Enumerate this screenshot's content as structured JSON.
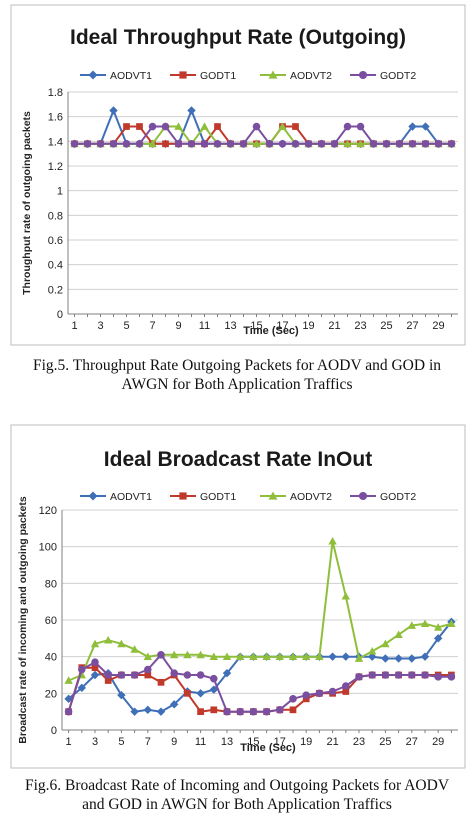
{
  "colors": {
    "AODVT1": "#3f6fb7",
    "GODT1": "#c0392b",
    "AODVT2": "#8fbf3a",
    "GODT2": "#7b4fa0",
    "grid": "#d0d0d0",
    "axis": "#808080"
  },
  "chart_data": [
    {
      "type": "line",
      "title": "Ideal Throughput Rate (Outgoing)",
      "xlabel": "Time (Sec)",
      "ylabel": "Throughput rate of outgoing packets",
      "x": [
        1,
        2,
        3,
        4,
        5,
        6,
        7,
        8,
        9,
        10,
        11,
        12,
        13,
        14,
        15,
        16,
        17,
        18,
        19,
        20,
        21,
        22,
        23,
        24,
        25,
        26,
        27,
        28,
        29,
        30
      ],
      "x_ticks": [
        1,
        3,
        5,
        7,
        9,
        11,
        13,
        15,
        17,
        19,
        21,
        23,
        25,
        27,
        29
      ],
      "y_ticks": [
        "0",
        "0.2",
        "0.4",
        "0.6",
        "0.8",
        "1",
        "1.2",
        "1.4",
        "1.6",
        "1.8"
      ],
      "ylim": [
        0,
        1.8
      ],
      "grid": true,
      "legend": "top",
      "series": [
        {
          "name": "AODVT1",
          "marker": "diamond",
          "values": [
            1.38,
            1.38,
            1.38,
            1.65,
            1.38,
            1.38,
            1.38,
            1.38,
            1.38,
            1.65,
            1.38,
            1.38,
            1.38,
            1.38,
            1.38,
            1.38,
            1.38,
            1.38,
            1.38,
            1.38,
            1.38,
            1.38,
            1.38,
            1.38,
            1.38,
            1.38,
            1.52,
            1.52,
            1.38,
            1.38
          ]
        },
        {
          "name": "GODT1",
          "marker": "square",
          "values": [
            1.38,
            1.38,
            1.38,
            1.38,
            1.52,
            1.52,
            1.38,
            1.38,
            1.38,
            1.38,
            1.38,
            1.52,
            1.38,
            1.38,
            1.38,
            1.38,
            1.52,
            1.52,
            1.38,
            1.38,
            1.38,
            1.38,
            1.38,
            1.38,
            1.38,
            1.38,
            1.38,
            1.38,
            1.38,
            1.38
          ]
        },
        {
          "name": "AODVT2",
          "marker": "triangle",
          "values": [
            1.38,
            1.38,
            1.38,
            1.38,
            1.38,
            1.38,
            1.38,
            1.52,
            1.52,
            1.38,
            1.52,
            1.38,
            1.38,
            1.38,
            1.38,
            1.38,
            1.52,
            1.38,
            1.38,
            1.38,
            1.38,
            1.38,
            1.38,
            1.38,
            1.38,
            1.38,
            1.38,
            1.38,
            1.38,
            1.38
          ]
        },
        {
          "name": "GODT2",
          "marker": "circle",
          "values": [
            1.38,
            1.38,
            1.38,
            1.38,
            1.38,
            1.38,
            1.52,
            1.52,
            1.38,
            1.38,
            1.38,
            1.38,
            1.38,
            1.38,
            1.52,
            1.38,
            1.38,
            1.38,
            1.38,
            1.38,
            1.38,
            1.52,
            1.52,
            1.38,
            1.38,
            1.38,
            1.38,
            1.38,
            1.38,
            1.38
          ]
        }
      ]
    },
    {
      "type": "line",
      "title": "Ideal Broadcast Rate InOut",
      "xlabel": "Time (Sec)",
      "ylabel": "Broadcast rate of incoming and outgoing packets",
      "x": [
        1,
        2,
        3,
        4,
        5,
        6,
        7,
        8,
        9,
        10,
        11,
        12,
        13,
        14,
        15,
        16,
        17,
        18,
        19,
        20,
        21,
        22,
        23,
        24,
        25,
        26,
        27,
        28,
        29,
        30
      ],
      "x_ticks": [
        1,
        3,
        5,
        7,
        9,
        11,
        13,
        15,
        17,
        19,
        21,
        23,
        25,
        27,
        29
      ],
      "y_ticks": [
        "0",
        "20",
        "40",
        "60",
        "80",
        "100",
        "120"
      ],
      "ylim": [
        0,
        120
      ],
      "grid": true,
      "legend": "top",
      "series": [
        {
          "name": "AODVT1",
          "marker": "diamond",
          "values": [
            17,
            23,
            30,
            31,
            19,
            10,
            11,
            10,
            14,
            21,
            20,
            22,
            31,
            40,
            40,
            40,
            40,
            40,
            40,
            40,
            40,
            40,
            40,
            40,
            39,
            39,
            39,
            40,
            50,
            59
          ]
        },
        {
          "name": "GODT1",
          "marker": "square",
          "values": [
            10,
            34,
            34,
            27,
            30,
            30,
            30,
            26,
            30,
            20,
            10,
            11,
            10,
            10,
            10,
            10,
            11,
            11,
            17,
            20,
            20,
            21,
            29,
            30,
            30,
            30,
            30,
            30,
            30,
            30
          ]
        },
        {
          "name": "AODVT2",
          "marker": "triangle",
          "values": [
            27,
            30,
            47,
            49,
            47,
            44,
            40,
            41,
            41,
            41,
            41,
            40,
            40,
            40,
            40,
            40,
            40,
            40,
            40,
            40,
            103,
            73,
            39,
            43,
            47,
            52,
            57,
            58,
            56,
            58
          ]
        },
        {
          "name": "GODT2",
          "marker": "circle",
          "values": [
            10,
            33,
            37,
            30,
            30,
            30,
            33,
            41,
            31,
            30,
            30,
            28,
            10,
            10,
            10,
            10,
            11,
            17,
            19,
            20,
            21,
            24,
            29,
            30,
            30,
            30,
            30,
            30,
            29,
            29
          ]
        }
      ]
    }
  ],
  "captions": [
    [
      "Fig.5. Throughput Rate Outgoing Packets for AODV and GOD in",
      "AWGN for Both Application Traffics"
    ],
    [
      "Fig.6. Broadcast Rate of Incoming and Outgoing Packets for AODV",
      "and GOD in AWGN for Both Application Traffics"
    ]
  ]
}
